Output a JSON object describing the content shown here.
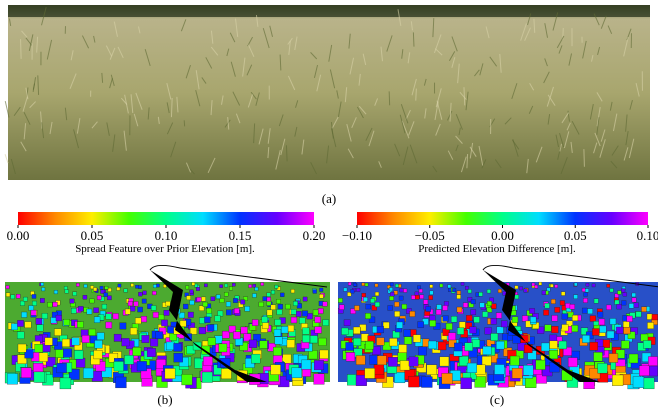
{
  "chart_data": [
    {
      "type": "colorbar",
      "xlabel": "Spread Feature over Prior Elevation [m].",
      "colors": [
        "#ff0000",
        "#ff8800",
        "#ffee00",
        "#44ff00",
        "#00ff88",
        "#00ddff",
        "#0033ff",
        "#6600ff",
        "#ff00ff"
      ],
      "xlim": [
        0,
        0.2
      ],
      "xticks": [
        {
          "value": 0,
          "label": "0.00"
        },
        {
          "value": 0.05,
          "label": "0.05"
        },
        {
          "value": 0.1,
          "label": "0.10"
        },
        {
          "value": 0.15,
          "label": "0.15"
        },
        {
          "value": 0.2,
          "label": "0.20"
        }
      ]
    },
    {
      "type": "colorbar",
      "xlabel": "Predicted Elevation Difference [m].",
      "colors": [
        "#ff0000",
        "#ff8800",
        "#ffee00",
        "#44ff00",
        "#00ff88",
        "#00ddff",
        "#0033ff",
        "#6600ff",
        "#ff00ff"
      ],
      "xlim": [
        -0.1,
        0.1
      ],
      "xticks": [
        {
          "value": -0.1,
          "label": "−0.10"
        },
        {
          "value": -0.05,
          "label": "−0.05"
        },
        {
          "value": 0,
          "label": "0.00"
        },
        {
          "value": 0.05,
          "label": "0.05"
        },
        {
          "value": 0.1,
          "label": "0.10"
        }
      ]
    }
  ],
  "captions": [
    "(a)",
    "(b)",
    "(c)"
  ]
}
